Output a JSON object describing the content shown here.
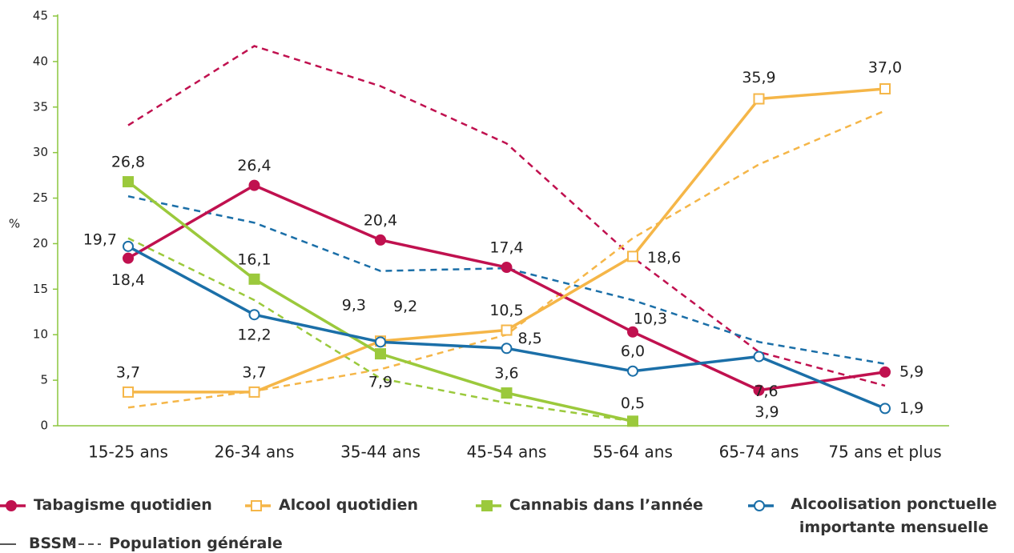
{
  "chart_data": {
    "type": "line",
    "y_label": "%",
    "categories": [
      "15-25 ans",
      "26-34 ans",
      "35-44 ans",
      "45-54 ans",
      "55-64 ans",
      "65-74 ans",
      "75 ans et plus"
    ],
    "ylim": [
      0,
      45
    ],
    "yticks": [
      0,
      5,
      10,
      15,
      20,
      25,
      30,
      35,
      40,
      45
    ],
    "series": [
      {
        "name": "Tabagisme quotidien",
        "color": "#c0114f",
        "marker": "circle-filled",
        "values": [
          18.4,
          26.4,
          20.4,
          17.4,
          10.3,
          3.9,
          5.9
        ],
        "value_labels": [
          "18,4",
          "26,4",
          "20,4",
          "17,4",
          "10,3",
          "3,9",
          "5,9"
        ],
        "population_values": [
          33.0,
          41.7,
          37.3,
          31.0,
          18.5,
          8.1,
          4.4
        ]
      },
      {
        "name": "Alcool quotidien",
        "color": "#f5b648",
        "marker": "square-open",
        "values": [
          3.7,
          3.7,
          9.3,
          10.5,
          18.6,
          35.9,
          37.0
        ],
        "value_labels": [
          "3,7",
          "3,7",
          "9,3",
          "10,5",
          "18,6",
          "35,9",
          "37,0"
        ],
        "population_values": [
          2.0,
          3.8,
          6.2,
          10.0,
          20.6,
          28.7,
          34.6
        ]
      },
      {
        "name": "Cannabis dans l’année",
        "color": "#9bc93c",
        "marker": "square-filled",
        "values": [
          26.8,
          16.1,
          7.9,
          3.6,
          0.5,
          null,
          null
        ],
        "value_labels": [
          "26,8",
          "16,1",
          "7,9",
          "3,6",
          "0,5",
          null,
          null
        ],
        "population_values": [
          20.6,
          13.8,
          5.2,
          2.5,
          0.5,
          null,
          null
        ]
      },
      {
        "name": "Alcoolisation ponctuelle importante mensuelle",
        "color": "#1b6fa8",
        "marker": "circle-open",
        "values": [
          19.7,
          12.2,
          9.2,
          8.5,
          6.0,
          7.6,
          1.9
        ],
        "value_labels": [
          "19,7",
          "12,2",
          "9,2",
          "8,5",
          "6,0",
          "7,6",
          "1,9"
        ],
        "population_values": [
          25.2,
          22.3,
          17.0,
          17.3,
          13.8,
          9.2,
          6.8
        ]
      }
    ],
    "line_styles": [
      "BSSM",
      "Population générale"
    ]
  }
}
